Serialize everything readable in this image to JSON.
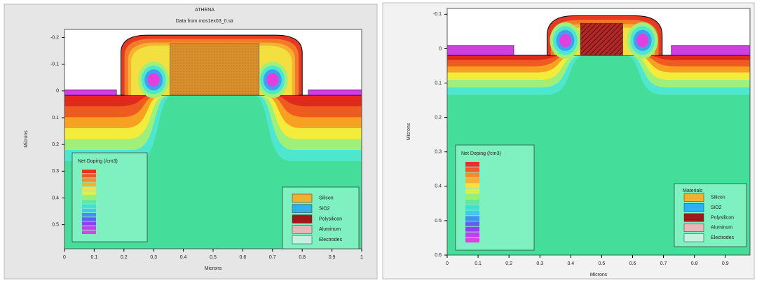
{
  "chart_data": [
    {
      "type": "contour",
      "title": "ATHENA",
      "subtitle": "Data from mos1ex03_0.str",
      "x_label": "Microns",
      "y_label": "Microns",
      "xlim": [
        0,
        1
      ],
      "ylim": [
        -0.23,
        0.59
      ],
      "y_inverted": true,
      "xticks": [
        0,
        0.1,
        0.2,
        0.3,
        0.4,
        0.5,
        0.6,
        0.7,
        0.8,
        0.9,
        1
      ],
      "yticks": [
        -0.2,
        -0.1,
        0,
        0.1,
        0.2,
        0.3,
        0.4,
        0.5
      ],
      "doping_legend": {
        "title": "Net Doping (/cm3)",
        "colors": [
          "#e8302a",
          "#f05a28",
          "#f88a2a",
          "#f8b030",
          "#f8e040",
          "#d8f050",
          "#98f070",
          "#60e8a0",
          "#40e0d0",
          "#40c8f0",
          "#4090f0",
          "#6060f0",
          "#9040f0",
          "#c040f0",
          "#e040e0"
        ]
      },
      "materials_legend": {
        "items": [
          {
            "name": "Silicon",
            "color": "#f0b030"
          },
          {
            "name": "SiO2",
            "color": "#30b0f0"
          },
          {
            "name": "Polysilicon",
            "color": "#a01818"
          },
          {
            "name": "Aluminum",
            "color": "#e8b8b8"
          },
          {
            "name": "Electrodes",
            "color": "#c8f0e0"
          }
        ]
      }
    },
    {
      "type": "contour",
      "x_label": "Microns",
      "y_label": "Microns",
      "xlim": [
        0,
        0.98
      ],
      "ylim": [
        -0.117,
        0.6
      ],
      "y_inverted": true,
      "xticks": [
        0,
        0.1,
        0.2,
        0.3,
        0.4,
        0.5,
        0.6,
        0.7,
        0.8,
        0.9
      ],
      "yticks": [
        -0.1,
        0,
        0.1,
        0.2,
        0.3,
        0.4,
        0.5,
        0.6
      ],
      "doping_legend": {
        "title": "Net Doping (/cm3)",
        "colors": [
          "#e8302a",
          "#f05a28",
          "#f88a2a",
          "#f8b030",
          "#f8e040",
          "#d8f050",
          "#98f070",
          "#60e8a0",
          "#40e0d0",
          "#40c8f0",
          "#4090f0",
          "#6060f0",
          "#9040f0",
          "#c040f0",
          "#e040e0"
        ]
      },
      "materials_legend": {
        "title": "Materials",
        "items": [
          {
            "name": "Silicon",
            "color": "#f0b030"
          },
          {
            "name": "SiO2",
            "color": "#30b0f0"
          },
          {
            "name": "Polysilicon",
            "color": "#a01818"
          },
          {
            "name": "Aluminum",
            "color": "#e8b8b8"
          },
          {
            "name": "Electrodes",
            "color": "#c8f0e0"
          }
        ]
      }
    }
  ]
}
